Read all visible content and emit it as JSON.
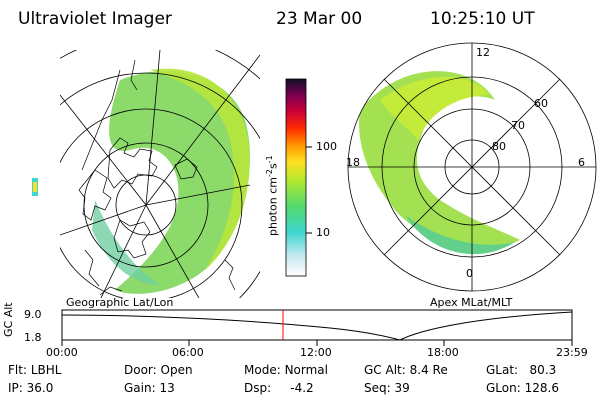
{
  "header": {
    "title": "Ultraviolet Imager",
    "date": "23 Mar 00",
    "time": "10:25:10 UT"
  },
  "left_panel": {
    "caption": "Geographic Lat/Lon"
  },
  "right_panel": {
    "caption": "Apex MLat/MLT",
    "mlt_labels": {
      "top": "12",
      "left": "18",
      "right": "6",
      "bottom": "0"
    },
    "lat_labels": [
      "60",
      "70",
      "80"
    ]
  },
  "colorbar": {
    "label": "photon cm",
    "label_sup1": "-2",
    "label_mid": "s",
    "label_sup2": "-1",
    "ticks": [
      "100",
      "10"
    ],
    "log_range": [
      1,
      1000
    ]
  },
  "altitude_plot": {
    "ylabel": "GC Alt",
    "yticks": [
      "9.0",
      "1.8"
    ],
    "xticks": [
      "00:00",
      "06:00",
      "12:00",
      "18:00",
      "23:59"
    ],
    "marker_time": "10:25",
    "marker_color": "#ff0000"
  },
  "info": {
    "flt_label": "Flt:",
    "flt_value": "LBHL",
    "ip_label": "IP:",
    "ip_value": "36.0",
    "door_label": "Door:",
    "door_value": "Open",
    "gain_label": "Gain:",
    "gain_value": "13",
    "mode_label": "Mode:",
    "mode_value": "Normal",
    "dsp_label": "Dsp:",
    "dsp_value": "-4.2",
    "gcalt_label": "GC Alt:",
    "gcalt_value": "8.4 Re",
    "seq_label": "Seq:",
    "seq_value": "39",
    "glat_label": "GLat:",
    "glat_value": "80.3",
    "glon_label": "GLon:",
    "glon_value": "128.6"
  }
}
